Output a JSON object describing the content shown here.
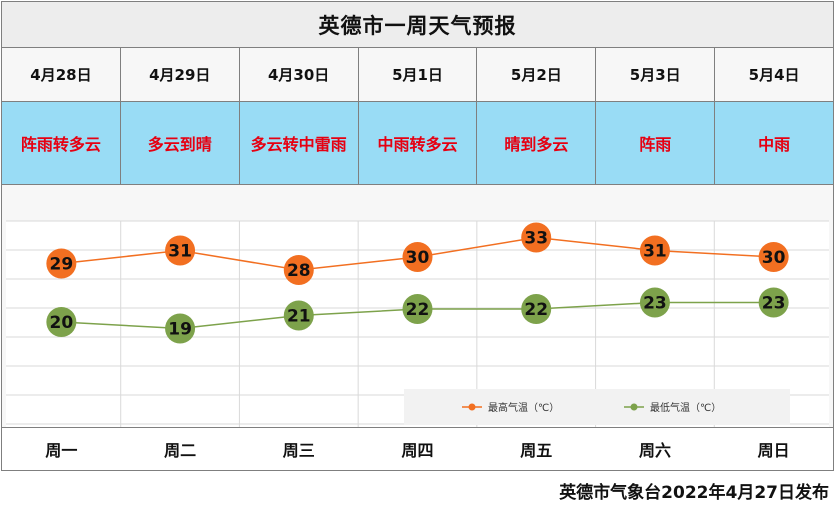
{
  "header": {
    "title": "英德市一周天气预报"
  },
  "dates": [
    "4月28日",
    "4月29日",
    "4月30日",
    "5月1日",
    "5月2日",
    "5月3日",
    "5月4日"
  ],
  "weather": [
    "阵雨转多云",
    "多云到晴",
    "多云转中雷雨",
    "中雨转多云",
    "晴到多云",
    "阵雨",
    "中雨"
  ],
  "days": [
    "周一",
    "周二",
    "周三",
    "周四",
    "周五",
    "周六",
    "周日"
  ],
  "footer": {
    "text": "英德市气象台2022年4月27日发布"
  },
  "colors": {
    "high": "#f26f21",
    "low": "#7da24b",
    "weather_bg": "#99dcf5",
    "weather_text": "#e60012"
  },
  "chart_data": {
    "type": "line",
    "categories": [
      "周一",
      "周二",
      "周三",
      "周四",
      "周五",
      "周六",
      "周日"
    ],
    "series": [
      {
        "name": "最高气温（℃）",
        "values": [
          29,
          31,
          28,
          30,
          33,
          31,
          30
        ]
      },
      {
        "name": "最低气温（℃）",
        "values": [
          20,
          19,
          21,
          22,
          22,
          23,
          23
        ]
      }
    ],
    "legend_position": "bottom-right",
    "grid": true
  }
}
